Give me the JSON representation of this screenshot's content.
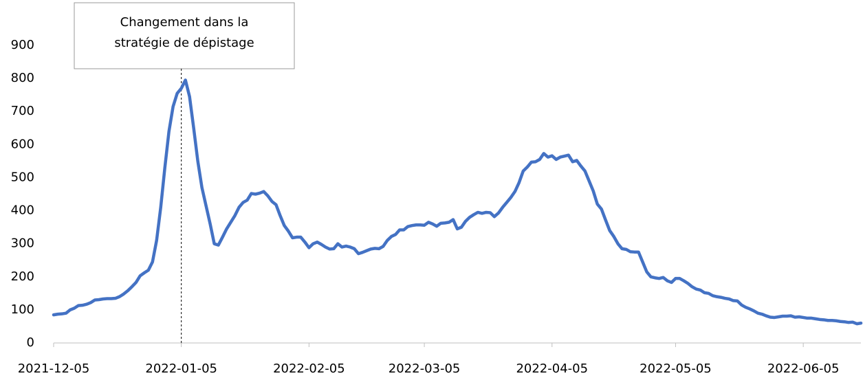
{
  "chart_data": {
    "type": "line",
    "annotation": {
      "text": [
        "Changement dans la",
        "stratégie de dépistage"
      ],
      "x": "2022-01-05"
    },
    "x": [
      "2021-12-05",
      "2021-12-06",
      "2021-12-07",
      "2021-12-08",
      "2021-12-09",
      "2021-12-10",
      "2021-12-11",
      "2021-12-12",
      "2021-12-13",
      "2021-12-14",
      "2021-12-15",
      "2021-12-16",
      "2021-12-17",
      "2021-12-18",
      "2021-12-19",
      "2021-12-20",
      "2021-12-21",
      "2021-12-22",
      "2021-12-23",
      "2021-12-24",
      "2021-12-25",
      "2021-12-26",
      "2021-12-27",
      "2021-12-28",
      "2021-12-29",
      "2021-12-30",
      "2021-12-31",
      "2022-01-01",
      "2022-01-02",
      "2022-01-03",
      "2022-01-04",
      "2022-01-05",
      "2022-01-06",
      "2022-01-07",
      "2022-01-08",
      "2022-01-09",
      "2022-01-10",
      "2022-01-11",
      "2022-01-12",
      "2022-01-13",
      "2022-01-14",
      "2022-01-15",
      "2022-01-16",
      "2022-01-17",
      "2022-01-18",
      "2022-01-19",
      "2022-01-20",
      "2022-01-21",
      "2022-01-22",
      "2022-01-23",
      "2022-01-24",
      "2022-01-25",
      "2022-01-26",
      "2022-01-27",
      "2022-01-28",
      "2022-01-29",
      "2022-01-30",
      "2022-01-31",
      "2022-02-01",
      "2022-02-02",
      "2022-02-03",
      "2022-02-04",
      "2022-02-05",
      "2022-02-06",
      "2022-02-07",
      "2022-02-08",
      "2022-02-09",
      "2022-02-10",
      "2022-02-11",
      "2022-02-12",
      "2022-02-13",
      "2022-02-14",
      "2022-02-15",
      "2022-02-16",
      "2022-02-17",
      "2022-02-18",
      "2022-02-19",
      "2022-02-20",
      "2022-02-21",
      "2022-02-22",
      "2022-02-23",
      "2022-02-24",
      "2022-02-25",
      "2022-02-26",
      "2022-02-27",
      "2022-02-28",
      "2022-03-01",
      "2022-03-02",
      "2022-03-03",
      "2022-03-04",
      "2022-03-05",
      "2022-03-06",
      "2022-03-07",
      "2022-03-08",
      "2022-03-09",
      "2022-03-10",
      "2022-03-11",
      "2022-03-12",
      "2022-03-13",
      "2022-03-14",
      "2022-03-15",
      "2022-03-16",
      "2022-03-17",
      "2022-03-18",
      "2022-03-19",
      "2022-03-20",
      "2022-03-21",
      "2022-03-22",
      "2022-03-23",
      "2022-03-24",
      "2022-03-25",
      "2022-03-26",
      "2022-03-27",
      "2022-03-28",
      "2022-03-29",
      "2022-03-30",
      "2022-03-31",
      "2022-04-01",
      "2022-04-02",
      "2022-04-03",
      "2022-04-04",
      "2022-04-05",
      "2022-04-06",
      "2022-04-07",
      "2022-04-08",
      "2022-04-09",
      "2022-04-10",
      "2022-04-11",
      "2022-04-12",
      "2022-04-13",
      "2022-04-14",
      "2022-04-15",
      "2022-04-16",
      "2022-04-17",
      "2022-04-18",
      "2022-04-19",
      "2022-04-20",
      "2022-04-21",
      "2022-04-22",
      "2022-04-23",
      "2022-04-24",
      "2022-04-25",
      "2022-04-26",
      "2022-04-27",
      "2022-04-28",
      "2022-04-29",
      "2022-04-30",
      "2022-05-01",
      "2022-05-02",
      "2022-05-03",
      "2022-05-04",
      "2022-05-05",
      "2022-05-06",
      "2022-05-07",
      "2022-05-08",
      "2022-05-09",
      "2022-05-10",
      "2022-05-11",
      "2022-05-12",
      "2022-05-13",
      "2022-05-14",
      "2022-05-15",
      "2022-05-16",
      "2022-05-17",
      "2022-05-18",
      "2022-05-19",
      "2022-05-20",
      "2022-05-21",
      "2022-05-22",
      "2022-05-23",
      "2022-05-24",
      "2022-05-25",
      "2022-05-26",
      "2022-05-27",
      "2022-05-28",
      "2022-05-29",
      "2022-05-30",
      "2022-05-31",
      "2022-06-01",
      "2022-06-02",
      "2022-06-03",
      "2022-06-04",
      "2022-06-05",
      "2022-06-06",
      "2022-06-07",
      "2022-06-08",
      "2022-06-09",
      "2022-06-10",
      "2022-06-11",
      "2022-06-12",
      "2022-06-13",
      "2022-06-14",
      "2022-06-15",
      "2022-06-16",
      "2022-06-17",
      "2022-06-18",
      "2022-06-19"
    ],
    "series": [
      {
        "color": "#4472c4",
        "values": [
          85,
          87,
          88,
          90,
          100,
          105,
          113,
          114,
          117,
          122,
          130,
          131,
          133,
          134,
          134,
          135,
          140,
          148,
          158,
          170,
          183,
          203,
          212,
          220,
          245,
          310,
          410,
          530,
          640,
          715,
          755,
          770,
          795,
          745,
          650,
          550,
          470,
          415,
          360,
          300,
          296,
          320,
          345,
          365,
          385,
          410,
          425,
          432,
          452,
          450,
          453,
          458,
          445,
          428,
          418,
          385,
          355,
          338,
          318,
          320,
          320,
          305,
          288,
          300,
          305,
          298,
          290,
          284,
          285,
          300,
          290,
          293,
          290,
          285,
          270,
          274,
          279,
          284,
          286,
          285,
          292,
          310,
          322,
          328,
          342,
          342,
          352,
          355,
          357,
          357,
          356,
          365,
          360,
          353,
          362,
          363,
          365,
          373,
          345,
          350,
          368,
          380,
          388,
          395,
          392,
          395,
          394,
          382,
          393,
          410,
          425,
          440,
          458,
          485,
          520,
          532,
          547,
          548,
          555,
          573,
          562,
          566,
          555,
          562,
          565,
          568,
          548,
          552,
          535,
          520,
          490,
          460,
          420,
          405,
          372,
          340,
          322,
          300,
          285,
          283,
          276,
          275,
          275,
          245,
          215,
          200,
          197,
          195,
          198,
          188,
          183,
          195,
          195,
          188,
          180,
          170,
          163,
          160,
          152,
          150,
          143,
          140,
          138,
          135,
          133,
          128,
          127,
          115,
          108,
          103,
          97,
          90,
          87,
          82,
          78,
          77,
          79,
          81,
          81,
          82,
          78,
          79,
          77,
          75,
          75,
          73,
          71,
          70,
          68,
          68,
          67,
          65,
          64,
          62,
          63,
          58,
          60
        ]
      }
    ],
    "xlim": [
      "2021-12-05",
      "2022-06-19"
    ],
    "xticks": [
      "2021-12-05",
      "2022-01-05",
      "2022-02-05",
      "2022-03-05",
      "2022-04-05",
      "2022-05-05",
      "2022-06-05"
    ],
    "ylim": [
      0,
      900
    ],
    "yticks": [
      0,
      100,
      200,
      300,
      400,
      500,
      600,
      700,
      800,
      900
    ],
    "grid": false
  }
}
